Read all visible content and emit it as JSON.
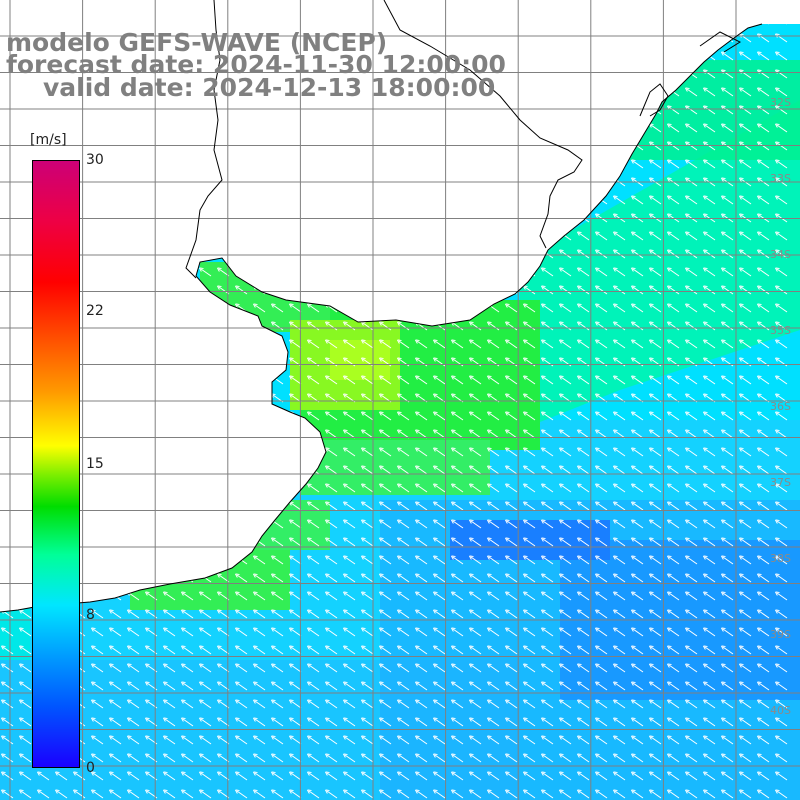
{
  "title": {
    "line1": "modelo GEFS-WAVE (NCEP)",
    "line2": "forecast date: 2024-11-30 12:00:00",
    "line3": "valid date: 2024-12-13 18:00:00"
  },
  "colorbar": {
    "unit": "[m/s]",
    "ticks": [
      "30",
      "22",
      "15",
      "8",
      "0"
    ],
    "range": [
      0,
      30
    ],
    "stops": [
      "#1a00ff",
      "#0099ff",
      "#00e6ff",
      "#00dd00",
      "#ffff00",
      "#ff5500",
      "#ff0000",
      "#cc0077"
    ]
  },
  "map": {
    "variable": "wind speed and direction",
    "projection": "lat-lon grid",
    "ocean_background": "#ffffff",
    "coastline_color": "#000000",
    "grid_color": "#808080",
    "arrow_color": "#ffffff",
    "lat_labels": [
      "32S",
      "33S",
      "34S",
      "35S",
      "36S",
      "37S",
      "38S",
      "39S",
      "40S"
    ],
    "wind_field": "arrows pointing north-west across the ocean area"
  },
  "colors": {
    "title": "#808080",
    "speed_low": "#0070ff",
    "speed_mid": "#00ffd0",
    "speed_high": "#b0ff00"
  }
}
